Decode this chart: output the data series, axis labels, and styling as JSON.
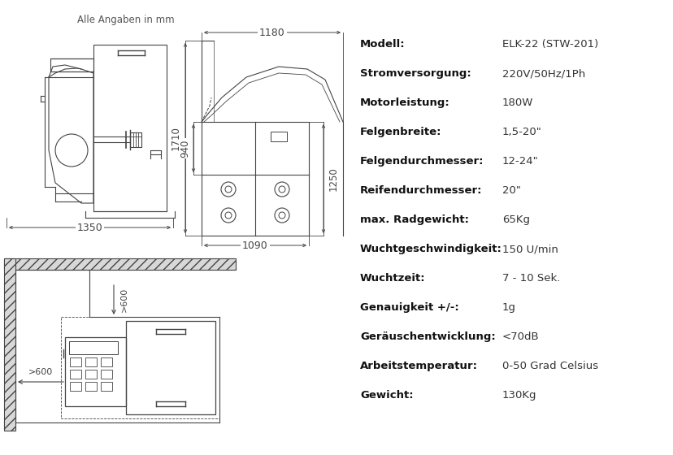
{
  "background_color": "#ffffff",
  "header_text": "Alle Angaben in mm",
  "specs": [
    [
      "Modell:",
      "ELK-22 (STW-201)"
    ],
    [
      "Stromversorgung:",
      "220V/50Hz/1Ph"
    ],
    [
      "Motorleistung:",
      "180W"
    ],
    [
      "Felgenbreite:",
      "1,5-20\""
    ],
    [
      "Felgendurchmesser:",
      "12-24\""
    ],
    [
      "Reifendurchmesser:",
      "20\""
    ],
    [
      "max. Radgewicht:",
      "65Kg"
    ],
    [
      "Wuchtgeschwindigkeit:",
      "150 U/min"
    ],
    [
      "Wuchtzeit:",
      "7 - 10 Sek."
    ],
    [
      "Genauigkeit +/-:",
      "1g"
    ],
    [
      "Geräuschentwicklung:",
      "<70dB"
    ],
    [
      "Arbeitstemperatur:",
      "0-50 Grad Celsius"
    ],
    [
      "Gewicht:",
      "130Kg"
    ]
  ],
  "dim_color": "#444444",
  "line_color": "#444444",
  "font_color": "#333333",
  "spec_label_color": "#111111",
  "spec_value_color": "#333333"
}
